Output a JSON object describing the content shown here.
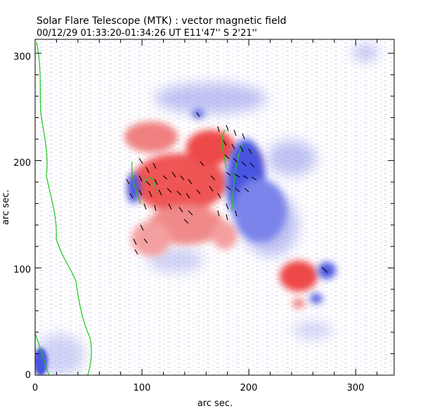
{
  "header": {
    "title": "Solar Flare Telescope (MTK) : vector magnetic field",
    "subtitle": "00/12/29  01:33:20-01:34:26 UT    E11'47''  S 2'21''"
  },
  "axes": {
    "x_label": "arc sec.",
    "y_label": "arc sec.",
    "x_range": [
      0,
      336
    ],
    "y_range": [
      0,
      313
    ],
    "x_ticks": [
      "0",
      "100",
      "200",
      "300"
    ],
    "y_ticks": [
      "0",
      "100",
      "200",
      "300"
    ]
  },
  "colors": {
    "positive_polarity": "#ee3b3b",
    "negative_polarity": "#4a55e0",
    "neutral_line": "#1ec81e",
    "transverse_vectors": "#000000",
    "background": "#ffffff"
  }
}
